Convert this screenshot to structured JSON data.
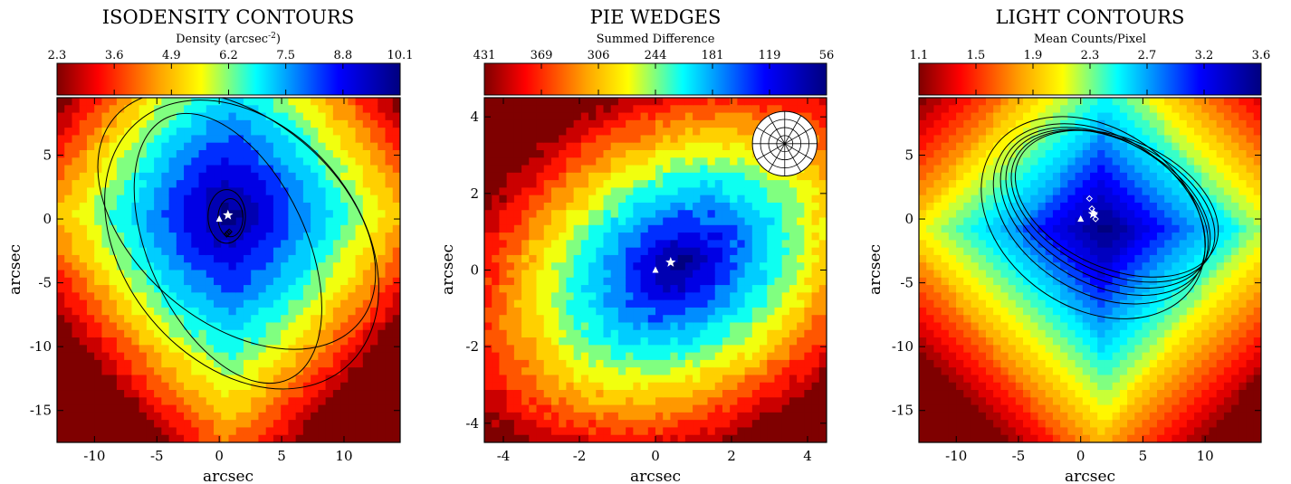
{
  "chart_data": [
    {
      "type": "heatmap",
      "title": "ISODENSITY CONTOURS",
      "colorbar": {
        "label": "Density (arcsec",
        "label_sup": "-2",
        "label_suffix": ")",
        "ticks": [
          "2.3",
          "3.6",
          "4.9",
          "6.2",
          "7.5",
          "8.8",
          "10.1"
        ],
        "range": [
          2.3,
          10.1
        ],
        "reversed": false
      },
      "xlabel": "arcsec",
      "ylabel": "arcsec",
      "xlim": [
        -13,
        14.5
      ],
      "ylim": [
        -17.5,
        9.5
      ],
      "xticks": [
        -10,
        -5,
        0,
        5,
        10
      ],
      "yticks": [
        5,
        0,
        -5,
        -10,
        -15
      ],
      "field": {
        "kind": "isodensity",
        "cx": 0.8,
        "cy": 0.4,
        "sx": 9.0,
        "sy": 10.5,
        "noise": 0.2
      },
      "ellipses": [
        {
          "cx": 0.9,
          "cy": 0.1,
          "a": 1.0,
          "b": 1.5,
          "angle": 0
        },
        {
          "cx": 0.6,
          "cy": 0.2,
          "a": 1.5,
          "b": 2.1,
          "angle": 0
        },
        {
          "cx": 0.7,
          "cy": -2.3,
          "a": 6.3,
          "b": 11.3,
          "angle": 25
        },
        {
          "cx": 1.8,
          "cy": -2.0,
          "a": 9.4,
          "b": 12.6,
          "angle": 40
        },
        {
          "cx": 1.4,
          "cy": -0.1,
          "a": 8.2,
          "b": 12.5,
          "angle": 50
        }
      ],
      "markers": [
        {
          "shape": "triangle",
          "x": 0.0,
          "y": 0.0,
          "color": "#ffffff"
        },
        {
          "shape": "star",
          "x": 0.7,
          "y": 0.3,
          "color": "#ffffff"
        },
        {
          "shape": "diamond",
          "x": 0.6,
          "y": -1.2,
          "color": "#000000"
        },
        {
          "shape": "diamond",
          "x": 0.7,
          "y": -1.1,
          "color": "#000000"
        },
        {
          "shape": "diamond",
          "x": 0.8,
          "y": -1.0,
          "color": "#000000"
        }
      ]
    },
    {
      "type": "heatmap",
      "title": "PIE WEDGES",
      "colorbar": {
        "label": "Summed Difference",
        "ticks": [
          "431",
          "369",
          "306",
          "244",
          "181",
          "119",
          "56"
        ],
        "range": [
          431,
          56
        ],
        "reversed": true
      },
      "xlabel": "arcsec",
      "ylabel": "arcsec",
      "xlim": [
        -4.5,
        4.5
      ],
      "ylim": [
        -4.5,
        4.5
      ],
      "xticks": [
        -4,
        -2,
        0,
        2,
        4
      ],
      "yticks": [
        4,
        2,
        0,
        -2,
        -4
      ],
      "field": {
        "kind": "wedges",
        "cx": 0.6,
        "cy": 0.1,
        "sx": 3.6,
        "sy": 2.6,
        "angle": -30,
        "noise": 0.35
      },
      "wheel": {
        "cx": 3.4,
        "cy": 3.3,
        "r": 0.85,
        "rings": 4,
        "spokes": 12
      },
      "markers": [
        {
          "shape": "triangle",
          "x": 0.0,
          "y": 0.0,
          "color": "#ffffff"
        },
        {
          "shape": "star",
          "x": 0.4,
          "y": 0.2,
          "color": "#ffffff"
        }
      ]
    },
    {
      "type": "heatmap",
      "title": "LIGHT CONTOURS",
      "colorbar": {
        "label": "Mean Counts/Pixel",
        "ticks": [
          "1.1",
          "1.5",
          "1.9",
          "2.3",
          "2.7",
          "3.2",
          "3.6"
        ],
        "range": [
          1.1,
          3.6
        ],
        "reversed": false
      },
      "xlabel": "arcsec",
      "ylabel": "arcsec",
      "xlim": [
        -13,
        14.5
      ],
      "ylim": [
        -17.5,
        9.5
      ],
      "xticks": [
        -10,
        -5,
        0,
        5,
        10
      ],
      "yticks": [
        5,
        0,
        -5,
        -10,
        -15
      ],
      "field": {
        "kind": "light",
        "cx": 1.8,
        "cy": -0.8,
        "sx": 11.0,
        "sy": 12.5,
        "noise": 0.0
      },
      "ellipses": [
        {
          "cx": 1.0,
          "cy": 0.1,
          "a": 7.2,
          "b": 9.5,
          "angle": 55
        },
        {
          "cx": 1.5,
          "cy": 0.4,
          "a": 6.3,
          "b": 9.0,
          "angle": 58
        },
        {
          "cx": 1.9,
          "cy": 0.6,
          "a": 5.8,
          "b": 8.8,
          "angle": 60
        },
        {
          "cx": 2.2,
          "cy": 0.8,
          "a": 5.5,
          "b": 8.6,
          "angle": 62
        },
        {
          "cx": 2.6,
          "cy": 1.0,
          "a": 5.3,
          "b": 8.5,
          "angle": 64
        },
        {
          "cx": 2.9,
          "cy": 1.2,
          "a": 5.2,
          "b": 8.4,
          "angle": 66
        }
      ],
      "markers": [
        {
          "shape": "triangle",
          "x": 0.0,
          "y": 0.0,
          "color": "#ffffff"
        },
        {
          "shape": "star",
          "x": 1.0,
          "y": 0.4,
          "color": "#ffffff"
        },
        {
          "shape": "diamond",
          "x": 0.7,
          "y": 1.6,
          "color": "#ffffff",
          "hollow": true
        },
        {
          "shape": "diamond",
          "x": 0.9,
          "y": 0.8,
          "color": "#ffffff",
          "hollow": true
        },
        {
          "shape": "diamond",
          "x": 1.1,
          "y": 0.4,
          "color": "#ffffff",
          "hollow": true
        },
        {
          "shape": "diamond",
          "x": 1.2,
          "y": 0.0,
          "color": "#ffffff",
          "hollow": true
        }
      ]
    }
  ]
}
